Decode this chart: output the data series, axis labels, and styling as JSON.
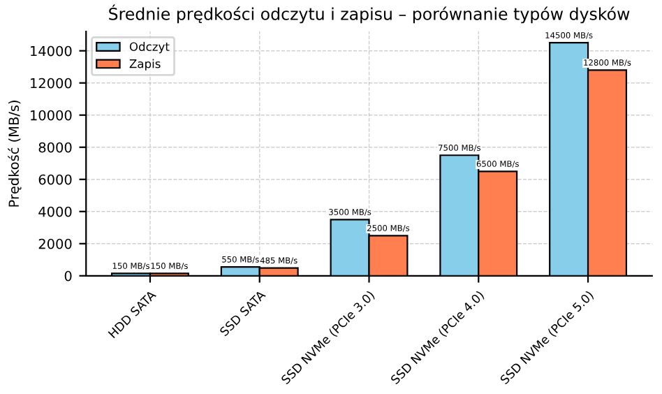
{
  "chart_data": {
    "type": "bar",
    "title": "Średnie prędkości odczytu i zapisu – porównanie typów dysków",
    "ylabel": "Prędkość (MB/s)",
    "categories": [
      "HDD SATA",
      "SSD SATA",
      "SSD NVMe (PCIe 3.0)",
      "SSD NVMe (PCIe 4.0)",
      "SSD NVMe (PCIe 5.0)"
    ],
    "series": [
      {
        "name": "Odczyt",
        "color": "#87ceeb",
        "values": [
          150,
          550,
          3500,
          7500,
          14500
        ],
        "value_labels": [
          "150 MB/s",
          "550 MB/s",
          "3500 MB/s",
          "7500 MB/s",
          "14500 MB/s"
        ]
      },
      {
        "name": "Zapis",
        "color": "#ff7f50",
        "values": [
          150,
          485,
          2500,
          6500,
          12800
        ],
        "value_labels": [
          "150 MB/s",
          "485 MB/s",
          "2500 MB/s",
          "6500 MB/s",
          "12800 MB/s"
        ]
      }
    ],
    "ylim": [
      0,
      15200
    ],
    "yticks": [
      0,
      2000,
      4000,
      6000,
      8000,
      10000,
      12000,
      14000
    ],
    "grid": true,
    "legend": "top left"
  }
}
